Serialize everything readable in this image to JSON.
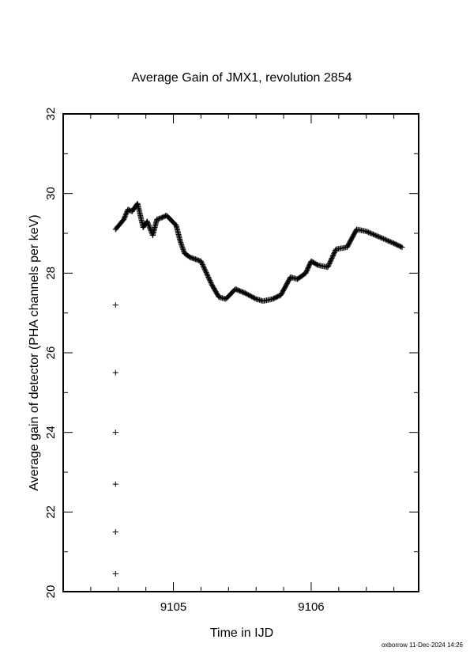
{
  "chart_data": {
    "type": "scatter",
    "title": "Average Gain of JMX1, revolution 2854",
    "xlabel": "Time in IJD",
    "ylabel": "Average gain of detector (PHA channels per keV)",
    "xlim": [
      9104.2,
      9106.78
    ],
    "ylim": [
      20,
      32
    ],
    "x_ticks": [
      {
        "value": 9105,
        "label": "9105"
      },
      {
        "value": 9106,
        "label": "9106"
      }
    ],
    "x_minor_ticks": [
      9104.4,
      9104.6,
      9104.8,
      9105.2,
      9105.4,
      9105.6,
      9105.8,
      9106.2,
      9106.4,
      9106.6
    ],
    "y_ticks": [
      {
        "value": 20,
        "label": "20"
      },
      {
        "value": 22,
        "label": "22"
      },
      {
        "value": 24,
        "label": "24"
      },
      {
        "value": 26,
        "label": "26"
      },
      {
        "value": 28,
        "label": "28"
      },
      {
        "value": 30,
        "label": "30"
      },
      {
        "value": 32,
        "label": "32"
      }
    ],
    "y_minor_ticks": [
      21,
      23,
      25,
      27,
      29,
      31
    ],
    "grid": false,
    "marker": "+",
    "marker_color": "#000000",
    "series": [
      {
        "outliers_x": [
          9104.58,
          9104.58,
          9104.58,
          9104.58,
          9104.58,
          9104.58
        ],
        "outliers_y": [
          27.2,
          25.5,
          24.0,
          22.7,
          21.5,
          20.45
        ],
        "curve_keypoints_x": [
          9104.58,
          9104.64,
          9104.67,
          9104.7,
          9104.74,
          9104.78,
          9104.81,
          9104.85,
          9104.88,
          9104.92,
          9104.95,
          9105.02,
          9105.05,
          9105.08,
          9105.12,
          9105.2,
          9105.28,
          9105.33,
          9105.38,
          9105.45,
          9105.52,
          9105.6,
          9105.65,
          9105.72,
          9105.78,
          9105.85,
          9105.9,
          9105.96,
          9106.0,
          9106.05,
          9106.12,
          9106.18,
          9106.26,
          9106.33,
          9106.4,
          9106.5,
          9106.6,
          9106.66
        ],
        "curve_keypoints_y": [
          29.1,
          29.35,
          29.6,
          29.55,
          29.75,
          29.15,
          29.3,
          28.95,
          29.35,
          29.4,
          29.45,
          29.2,
          28.8,
          28.5,
          28.4,
          28.3,
          27.7,
          27.4,
          27.35,
          27.6,
          27.5,
          27.35,
          27.3,
          27.35,
          27.45,
          27.9,
          27.85,
          28.0,
          28.3,
          28.2,
          28.15,
          28.6,
          28.65,
          29.1,
          29.05,
          28.9,
          28.75,
          28.65
        ]
      }
    ]
  },
  "footer": "oxborrow 11-Dec-2024 14:26"
}
